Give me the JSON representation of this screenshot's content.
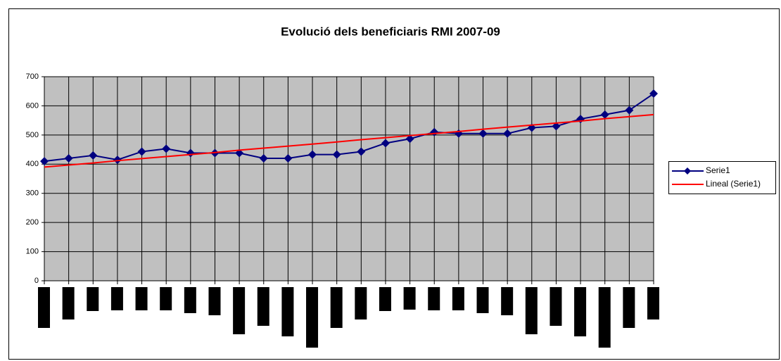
{
  "chart_data": {
    "type": "line",
    "title": "Evolució dels beneficiaris RMI 2007-09",
    "categories": [
      null,
      null,
      null,
      null,
      null,
      null,
      null,
      null,
      null,
      null,
      null,
      null,
      null,
      null,
      null,
      null,
      null,
      null,
      null,
      null,
      null,
      null,
      null,
      null,
      null,
      null
    ],
    "series": [
      {
        "name": "Serie1",
        "color": "#000080",
        "marker": "diamond",
        "values": [
          410,
          420,
          430,
          415,
          443,
          453,
          438,
          438,
          438,
          420,
          420,
          433,
          433,
          443,
          472,
          487,
          510,
          505,
          505,
          505,
          525,
          530,
          555,
          570,
          585,
          642
        ]
      },
      {
        "name": "Lineal (Serie1)",
        "color": "#ff0000",
        "values": [
          390,
          397,
          404,
          412,
          419,
          426,
          433,
          440,
          448,
          455,
          462,
          469,
          476,
          484,
          491,
          498,
          505,
          512,
          520,
          527,
          534,
          541,
          548,
          556,
          563,
          570
        ]
      }
    ],
    "ylim": [
      0,
      700
    ],
    "yticks": [
      0,
      100,
      200,
      300,
      400,
      500,
      600,
      700
    ],
    "grid": true,
    "legend": "right"
  }
}
